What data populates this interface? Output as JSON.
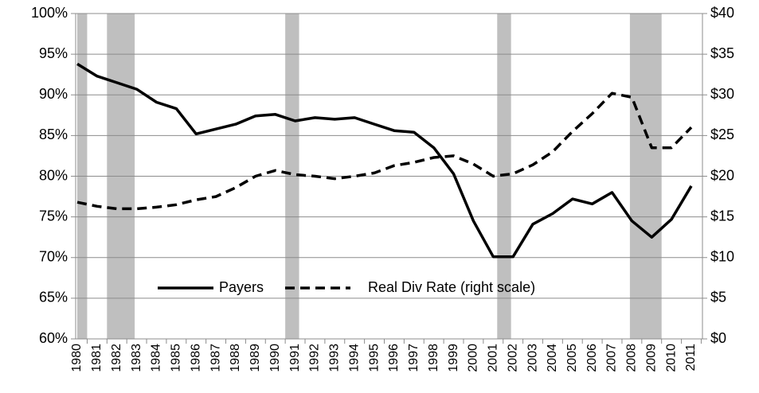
{
  "chart_data": {
    "type": "line",
    "categories": [
      "1980",
      "1981",
      "1982",
      "1983",
      "1984",
      "1985",
      "1986",
      "1987",
      "1988",
      "1989",
      "1990",
      "1991",
      "1992",
      "1993",
      "1994",
      "1995",
      "1996",
      "1997",
      "1998",
      "1999",
      "2000",
      "2001",
      "2002",
      "2003",
      "2004",
      "2005",
      "2006",
      "2007",
      "2008",
      "2009",
      "2010",
      "2011"
    ],
    "series": [
      {
        "name": "Payers",
        "color": "#000000",
        "dash": false,
        "values": [
          93.8,
          92.3,
          91.5,
          90.7,
          89.1,
          88.3,
          85.2,
          85.8,
          86.4,
          87.4,
          87.6,
          86.8,
          87.2,
          87.0,
          87.2,
          86.4,
          85.6,
          85.4,
          83.5,
          80.3,
          74.5,
          70.1,
          70.1,
          74.1,
          75.4,
          77.2,
          76.6,
          78.0,
          74.5,
          72.5,
          74.7,
          78.8
        ]
      },
      {
        "name": "Real Div Rate (right scale)",
        "color": "#000000",
        "dash": true,
        "axis": "y2",
        "values": [
          16.8,
          16.3,
          16.0,
          16.0,
          16.2,
          16.5,
          17.1,
          17.5,
          18.6,
          20.0,
          20.7,
          20.2,
          20.0,
          19.7,
          20.0,
          20.4,
          21.3,
          21.7,
          22.3,
          22.5,
          21.5,
          20.0,
          20.3,
          21.4,
          23.0,
          25.5,
          27.7,
          30.2,
          29.7,
          23.5,
          23.5,
          26.0
        ]
      }
    ],
    "shaded_periods": [
      [
        1980,
        1980.5
      ],
      [
        1981.5,
        1982.9
      ],
      [
        1990.5,
        1991.2
      ],
      [
        2001.2,
        2001.9
      ],
      [
        2007.9,
        2009.5
      ]
    ],
    "shade_color": "#bfbfbf",
    "ylim": [
      60,
      100
    ],
    "yticks": [
      {
        "value": 60,
        "label": "60%"
      },
      {
        "value": 65,
        "label": "65%"
      },
      {
        "value": 70,
        "label": "70%"
      },
      {
        "value": 75,
        "label": "75%"
      },
      {
        "value": 80,
        "label": "80%"
      },
      {
        "value": 85,
        "label": "85%"
      },
      {
        "value": 90,
        "label": "90%"
      },
      {
        "value": 95,
        "label": "95%"
      },
      {
        "value": 100,
        "label": "100%"
      }
    ],
    "y2lim": [
      0,
      40
    ],
    "y2ticks": [
      {
        "value": 0,
        "label": "$0"
      },
      {
        "value": 5,
        "label": "$5"
      },
      {
        "value": 10,
        "label": "$10"
      },
      {
        "value": 15,
        "label": "$15"
      },
      {
        "value": 20,
        "label": "$20"
      },
      {
        "value": 25,
        "label": "$25"
      },
      {
        "value": 30,
        "label": "$30"
      },
      {
        "value": 35,
        "label": "$35"
      },
      {
        "value": 40,
        "label": "$40"
      }
    ],
    "grid": true
  }
}
